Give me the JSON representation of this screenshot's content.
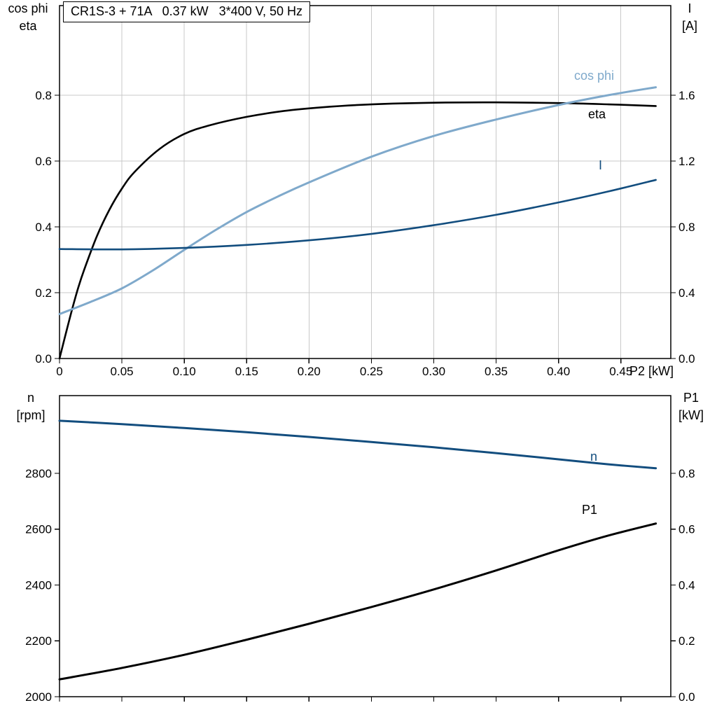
{
  "page": {
    "background": "#ffffff"
  },
  "colors": {
    "black": "#000000",
    "light_blue": "#7fa9cb",
    "dark_blue": "#124d7e",
    "grid": "#c8c8c8"
  },
  "chart_data": [
    {
      "type": "line",
      "title": "CR1S-3 + 71A   0.37 kW   3*400 V, 50 Hz",
      "xlabel": "P2 [kW]",
      "ylabel_left_lines": [
        "cos phi",
        "eta"
      ],
      "ylabel_right_lines": [
        "I",
        "[A]"
      ],
      "xlim": [
        0,
        0.49
      ],
      "ylim_left": [
        0,
        1.072
      ],
      "ylim_right": [
        0,
        2.144
      ],
      "xticks": [
        0,
        0.05,
        0.1,
        0.15,
        0.2,
        0.25,
        0.3,
        0.35,
        0.4,
        0.45
      ],
      "xtick_labels": [
        "0",
        "0.05",
        "0.10",
        "0.15",
        "0.20",
        "0.25",
        "0.30",
        "0.35",
        "0.40",
        "0.45"
      ],
      "yticks_left": [
        0,
        0.2,
        0.4,
        0.6,
        0.8
      ],
      "ytick_labels_left": [
        "0.0",
        "0.2",
        "0.4",
        "0.6",
        "0.8"
      ],
      "yticks_right": [
        0,
        0.4,
        0.8,
        1.2,
        1.6
      ],
      "ytick_labels_right": [
        "0.0",
        "0.4",
        "0.8",
        "1.2",
        "1.6"
      ],
      "grid": true,
      "grid_color": "#c8c8c8",
      "legend_position": "inline-curve-labels",
      "series": [
        {
          "name": "eta",
          "axis": "left",
          "color": "#000000",
          "width": 2.6,
          "x": [
            0,
            0.005,
            0.01,
            0.015,
            0.02,
            0.03,
            0.04,
            0.05,
            0.06,
            0.08,
            0.1,
            0.12,
            0.15,
            0.18,
            0.21,
            0.25,
            0.3,
            0.35,
            0.4,
            0.44,
            0.478
          ],
          "y": [
            0,
            0.075,
            0.148,
            0.215,
            0.272,
            0.372,
            0.452,
            0.516,
            0.566,
            0.636,
            0.682,
            0.708,
            0.734,
            0.752,
            0.763,
            0.772,
            0.777,
            0.778,
            0.776,
            0.772,
            0.767
          ]
        },
        {
          "name": "cos phi",
          "axis": "left",
          "color": "#7fa9cb",
          "width": 3,
          "x": [
            0,
            0.025,
            0.05,
            0.075,
            0.1,
            0.125,
            0.15,
            0.175,
            0.2,
            0.25,
            0.3,
            0.35,
            0.4,
            0.44,
            0.478
          ],
          "y": [
            0.135,
            0.172,
            0.213,
            0.268,
            0.33,
            0.39,
            0.445,
            0.492,
            0.535,
            0.613,
            0.676,
            0.726,
            0.77,
            0.8,
            0.824
          ]
        },
        {
          "name": "I",
          "axis": "right",
          "color": "#124d7e",
          "width": 2.6,
          "x": [
            0,
            0.05,
            0.1,
            0.15,
            0.2,
            0.25,
            0.3,
            0.35,
            0.4,
            0.44,
            0.478
          ],
          "y": [
            0.665,
            0.663,
            0.672,
            0.69,
            0.718,
            0.757,
            0.81,
            0.873,
            0.948,
            1.015,
            1.085
          ]
        }
      ]
    },
    {
      "type": "line",
      "title": "",
      "xlabel": "",
      "ylabel_left_lines": [
        "n",
        "[rpm]"
      ],
      "ylabel_right_lines": [
        "P1",
        "[kW]"
      ],
      "xlim": [
        0,
        0.49
      ],
      "ylim_left": [
        2000,
        3078
      ],
      "ylim_right": [
        0,
        1.078
      ],
      "xticks": [
        0,
        0.05,
        0.1,
        0.15,
        0.2,
        0.25,
        0.3,
        0.35,
        0.4,
        0.45
      ],
      "xtick_labels": [],
      "yticks_left": [
        2000,
        2200,
        2400,
        2600,
        2800
      ],
      "ytick_labels_left": [
        "2000",
        "2200",
        "2400",
        "2600",
        "2800"
      ],
      "yticks_right": [
        0,
        0.2,
        0.4,
        0.6,
        0.8
      ],
      "ytick_labels_right": [
        "0.0",
        "0.2",
        "0.4",
        "0.6",
        "0.8"
      ],
      "grid": false,
      "grid_color": "#c8c8c8",
      "legend_position": "inline-curve-labels",
      "series": [
        {
          "name": "n",
          "axis": "left",
          "color": "#124d7e",
          "width": 3,
          "x": [
            0,
            0.05,
            0.1,
            0.15,
            0.2,
            0.25,
            0.3,
            0.35,
            0.4,
            0.44,
            0.478
          ],
          "y": [
            2988,
            2976,
            2962,
            2947,
            2930,
            2912,
            2893,
            2872,
            2850,
            2832,
            2818
          ]
        },
        {
          "name": "P1",
          "axis": "right",
          "color": "#000000",
          "width": 3,
          "x": [
            0,
            0.05,
            0.1,
            0.15,
            0.2,
            0.25,
            0.3,
            0.35,
            0.4,
            0.44,
            0.478
          ],
          "y": [
            0.062,
            0.103,
            0.15,
            0.204,
            0.261,
            0.321,
            0.384,
            0.452,
            0.524,
            0.577,
            0.62
          ]
        }
      ]
    }
  ]
}
